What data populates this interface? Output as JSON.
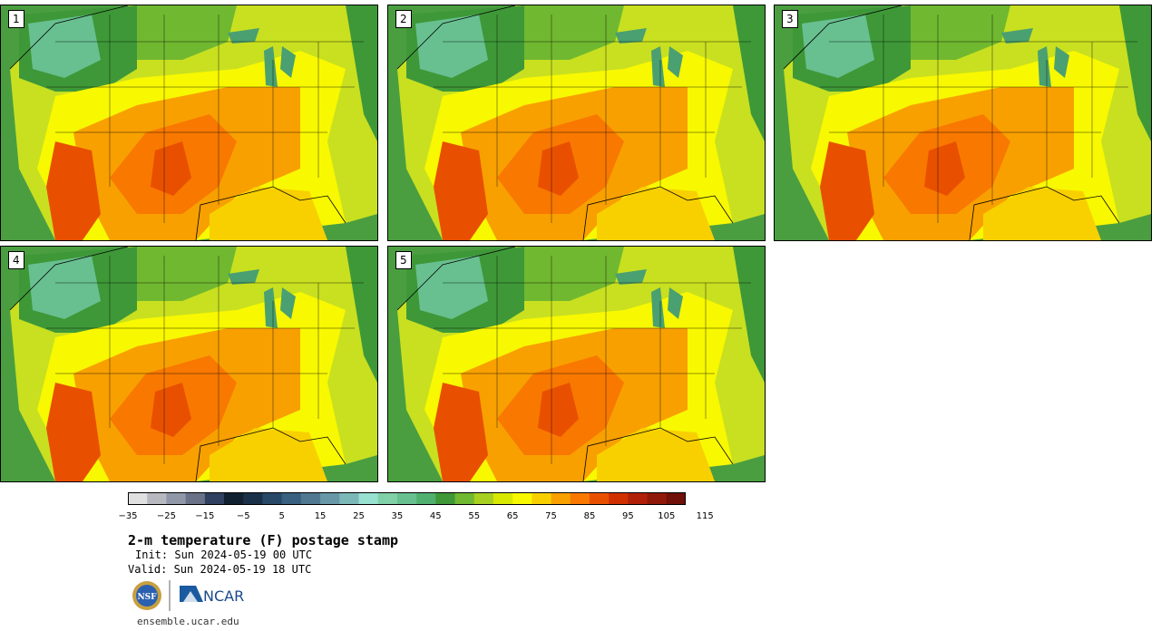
{
  "panels": [
    {
      "label": "1"
    },
    {
      "label": "2"
    },
    {
      "label": "3"
    },
    {
      "label": "4"
    },
    {
      "label": "5"
    }
  ],
  "colorbar": {
    "colors": [
      "#e0e0e0",
      "#b8b8c0",
      "#9098a8",
      "#6a7288",
      "#304060",
      "#102030",
      "#1a3048",
      "#284868",
      "#3a6080",
      "#507890",
      "#6898a8",
      "#7cb8b8",
      "#98e0d0",
      "#80d0a8",
      "#68c090",
      "#50b070",
      "#3e9838",
      "#70b830",
      "#a8d020",
      "#d8e800",
      "#f8f800",
      "#f8d000",
      "#f8a000",
      "#f87800",
      "#e85000",
      "#d03000",
      "#b02008",
      "#901808",
      "#701008"
    ],
    "tick_labels": [
      "−35",
      "−25",
      "−15",
      "−5",
      "5",
      "15",
      "25",
      "35",
      "45",
      "55",
      "65",
      "75",
      "85",
      "95",
      "105",
      "115"
    ]
  },
  "title": "2-m temperature (F) postage stamp",
  "init": "Init: Sun 2024-05-19 00 UTC",
  "valid": "Valid: Sun 2024-05-19 18 UTC",
  "logos": {
    "nsf": "NSF",
    "ncar": "NCAR"
  },
  "url": "ensemble.ucar.edu"
}
